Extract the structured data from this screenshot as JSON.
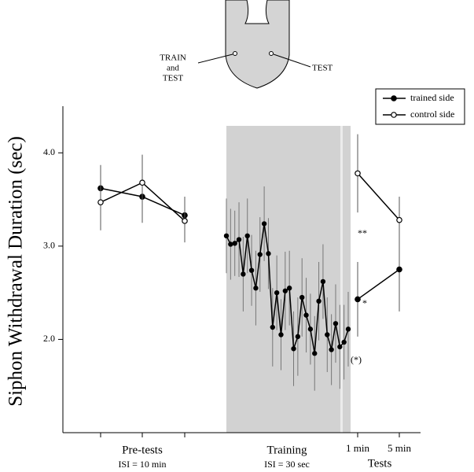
{
  "diagram": {
    "left_label": [
      "TRAIN",
      "and",
      "TEST"
    ],
    "right_label": "TEST"
  },
  "chart_data": {
    "type": "line",
    "ylabel": "Siphon Withdrawal Duration (sec)",
    "ylim": [
      1.0,
      4.5
    ],
    "yticks": [
      {
        "value": 2,
        "label": "2.0"
      },
      {
        "value": 3,
        "label": "3.0"
      },
      {
        "value": 4,
        "label": "4.0"
      }
    ],
    "series": [
      {
        "name": "trained side",
        "marker": "filled",
        "color": "#000000"
      },
      {
        "name": "control side",
        "marker": "open",
        "color": "#000000"
      }
    ],
    "groups": [
      {
        "label": "Pre-tests",
        "sublabel": "ISI = 10 min",
        "values": [
          [
            3.62,
            3.53,
            3.33
          ],
          [
            3.47,
            3.68,
            3.27
          ]
        ],
        "errors": [
          [
            0.25,
            0.28,
            0.2
          ],
          [
            0.3,
            0.3,
            0.23
          ]
        ]
      },
      {
        "label": "Training",
        "sublabel": "ISI = 30 sec",
        "shaded": true,
        "values": [
          [
            3.11,
            3.02,
            3.03,
            3.07,
            2.7,
            3.11,
            2.74,
            2.55,
            2.91,
            3.24,
            2.92,
            2.13,
            2.5,
            2.05,
            2.52,
            2.55,
            1.9,
            2.03,
            2.45,
            2.26,
            2.11,
            1.85,
            2.41,
            2.62,
            2.05,
            1.89,
            2.17,
            1.92,
            1.97,
            2.11
          ]
        ],
        "errors": [
          [
            0.4,
            0.38,
            0.35,
            0.4,
            0.4,
            0.4,
            0.38,
            0.4,
            0.4,
            0.4,
            0.38,
            0.42,
            0.4,
            0.38,
            0.42,
            0.4,
            0.4,
            0.42,
            0.42,
            0.4,
            0.38,
            0.4,
            0.42,
            0.4,
            0.4,
            0.38,
            0.42,
            0.45,
            0.4,
            0.4
          ]
        ]
      },
      {
        "label": "Tests",
        "categories": [
          "1 min",
          "5 min"
        ],
        "values": [
          [
            2.43,
            2.75
          ],
          [
            3.78,
            3.28
          ]
        ],
        "errors": [
          [
            0.4,
            0.45
          ],
          [
            0.42,
            0.25
          ]
        ]
      }
    ],
    "annotations": [
      "**",
      "*",
      "(*)"
    ]
  }
}
